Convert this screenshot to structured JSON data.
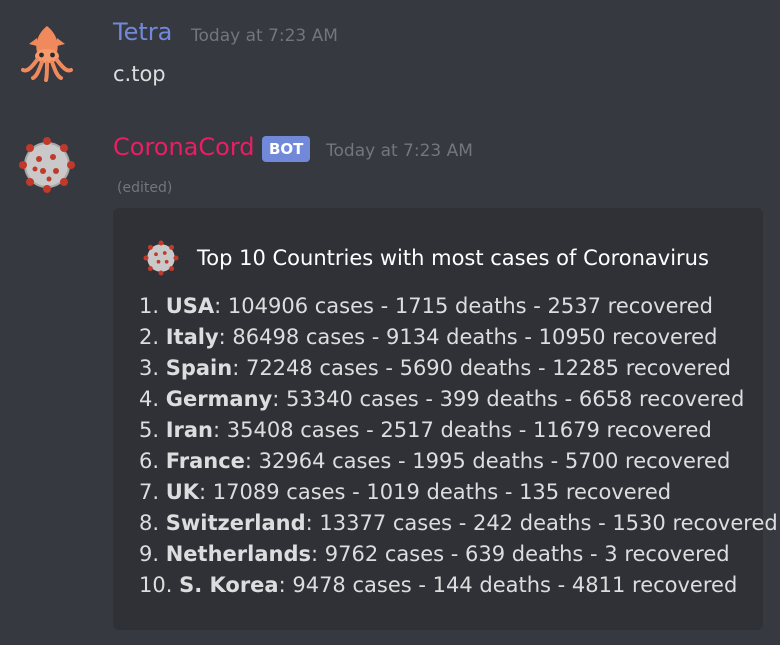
{
  "messages": [
    {
      "author": "Tetra",
      "author_color": "#7289da",
      "timestamp": "Today at 7:23 AM",
      "content": "c.top",
      "avatar_icon": "squid-icon"
    },
    {
      "author": "CoronaCord",
      "author_color": "#e91e63",
      "bot_tag": "BOT",
      "timestamp": "Today at 7:23 AM",
      "edited_label": "(edited)",
      "avatar_icon": "coronavirus-icon",
      "embed": {
        "author_icon": "coronavirus-icon",
        "title": "Top 10 Countries with most cases of Coronavirus",
        "lines": [
          {
            "prefix": "1. ",
            "country": "USA",
            "rest": ": 104906 cases - 1715 deaths - 2537 recovered"
          },
          {
            "prefix": "2. ",
            "country": "Italy",
            "rest": ": 86498 cases - 9134 deaths - 10950 recovered"
          },
          {
            "prefix": "3. ",
            "country": "Spain",
            "rest": ": 72248 cases - 5690 deaths - 12285 recovered"
          },
          {
            "prefix": "4. ",
            "country": "Germany",
            "rest": ": 53340 cases - 399 deaths - 6658 recovered"
          },
          {
            "prefix": "5. ",
            "country": "Iran",
            "rest": ": 35408 cases - 2517 deaths - 11679 recovered"
          },
          {
            "prefix": "6. ",
            "country": "France",
            "rest": ": 32964 cases - 1995 deaths - 5700 recovered"
          },
          {
            "prefix": "7. ",
            "country": "UK",
            "rest": ": 17089 cases - 1019 deaths - 135 recovered"
          },
          {
            "prefix": "8. ",
            "country": "Switzerland",
            "rest": ": 13377 cases - 242 deaths - 1530 recovered"
          },
          {
            "prefix": "9. ",
            "country": "Netherlands",
            "rest": ": 9762 cases - 639 deaths - 3 recovered"
          },
          {
            "prefix": "10. ",
            "country": "S. Korea",
            "rest": ": 9478 cases - 144 deaths - 4811 recovered"
          }
        ]
      }
    }
  ]
}
